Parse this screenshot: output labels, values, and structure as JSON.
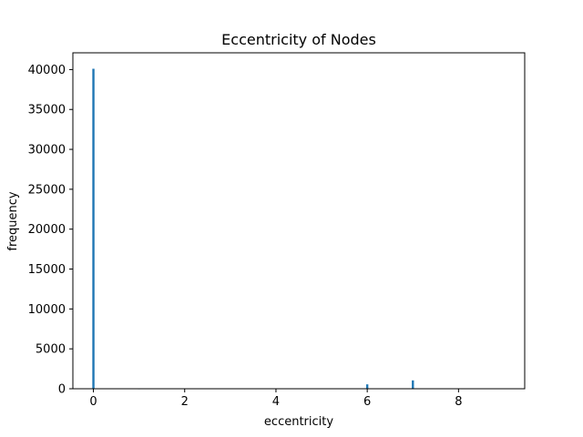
{
  "chart_data": {
    "type": "bar",
    "title": "Eccentricity of Nodes",
    "xlabel": "eccentricity",
    "ylabel": "frequency",
    "x": [
      0,
      1,
      6,
      7
    ],
    "values": [
      40100,
      30,
      550,
      1050
    ],
    "xlim": [
      -0.45,
      9.45
    ],
    "ylim": [
      0,
      42100
    ],
    "xticks": [
      "0",
      "2",
      "4",
      "6",
      "8"
    ],
    "yticks": [
      "0",
      "5000",
      "10000",
      "15000",
      "20000",
      "25000",
      "30000",
      "35000",
      "40000"
    ],
    "bar_color": "#1f77b4",
    "grid": false
  }
}
